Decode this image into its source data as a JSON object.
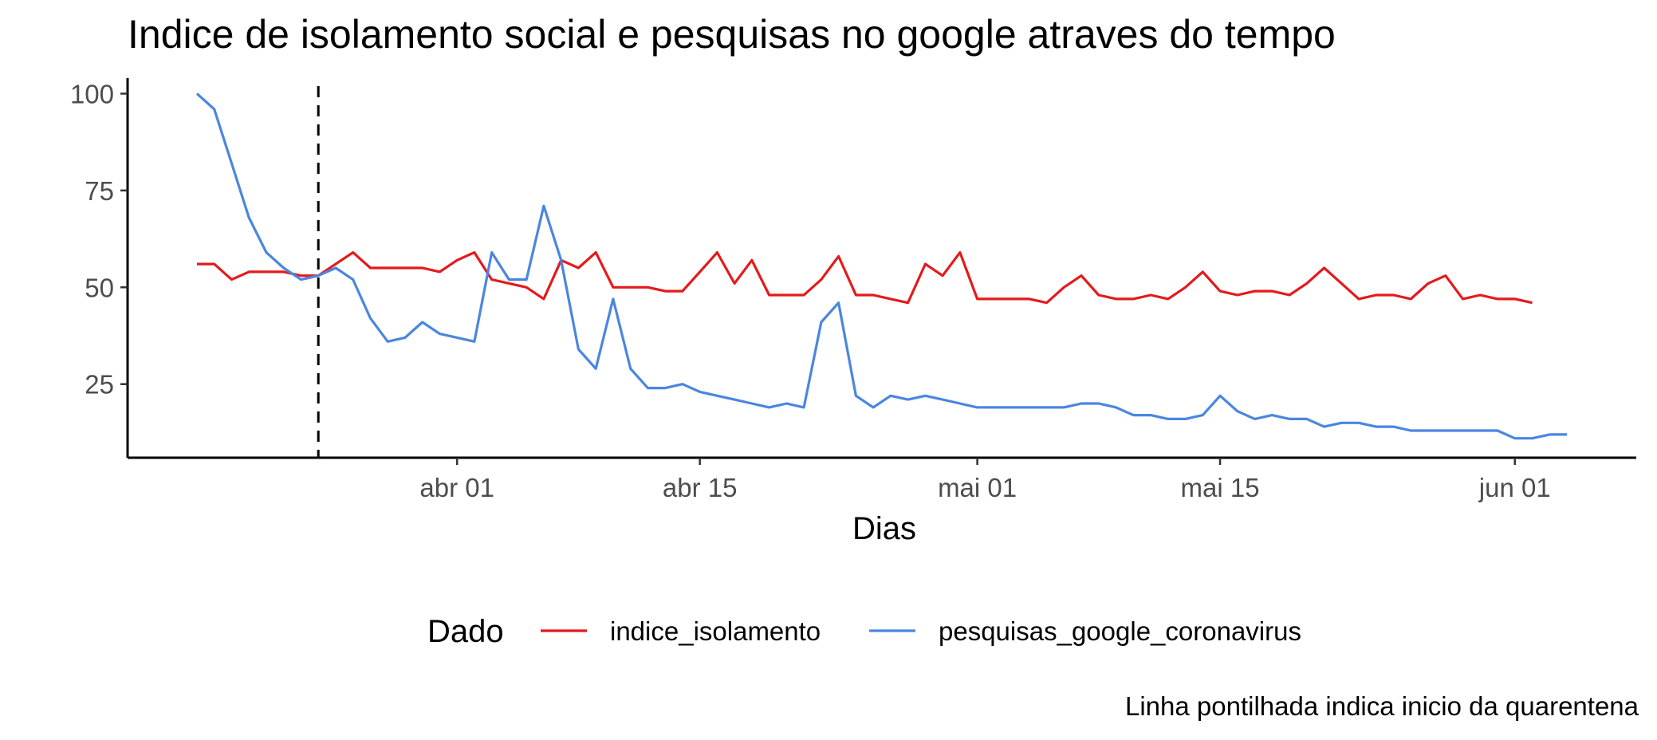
{
  "chart_data": {
    "type": "line",
    "title": "Indice de isolamento social e pesquisas no google atraves do tempo",
    "xlabel": "Dias",
    "ylabel": "",
    "caption": "Linha pontilhada indica inicio da quarentena",
    "legend": {
      "title": "Dado",
      "position": "bottom"
    },
    "grid": false,
    "x_start_date": "2020-03-17",
    "x_ticks": [
      {
        "date": "2020-04-01",
        "label": "abr 01"
      },
      {
        "date": "2020-04-15",
        "label": "abr 15"
      },
      {
        "date": "2020-05-01",
        "label": "mai 01"
      },
      {
        "date": "2020-05-15",
        "label": "mai 15"
      },
      {
        "date": "2020-06-01",
        "label": "jun 01"
      }
    ],
    "y_ticks": [
      25,
      50,
      75,
      100
    ],
    "xlim": [
      "2020-03-13",
      "2020-06-08"
    ],
    "ylim": [
      6,
      104
    ],
    "vline": {
      "date": "2020-03-24",
      "style": "dashed",
      "color": "#000000"
    },
    "series": [
      {
        "name": "indice_isolamento",
        "color": "#e41a1c",
        "values": [
          56,
          56,
          52,
          54,
          54,
          54,
          53,
          53,
          56,
          59,
          55,
          55,
          55,
          55,
          54,
          57,
          59,
          52,
          51,
          50,
          47,
          57,
          55,
          59,
          50,
          50,
          50,
          49,
          49,
          54,
          59,
          51,
          57,
          48,
          48,
          48,
          52,
          58,
          48,
          48,
          47,
          46,
          56,
          53,
          59,
          47,
          47,
          47,
          47,
          46,
          50,
          53,
          48,
          47,
          47,
          48,
          47,
          50,
          54,
          49,
          48,
          49,
          49,
          48,
          51,
          55,
          51,
          47,
          48,
          48,
          47,
          51,
          53,
          47,
          48,
          47,
          47,
          46
        ]
      },
      {
        "name": "pesquisas_google_coronavirus",
        "color": "#4a86e0",
        "values": [
          100,
          96,
          82,
          68,
          59,
          55,
          52,
          53,
          55,
          52,
          42,
          36,
          37,
          41,
          38,
          37,
          36,
          59,
          52,
          52,
          71,
          57,
          34,
          29,
          47,
          29,
          24,
          24,
          25,
          23,
          22,
          21,
          20,
          19,
          20,
          19,
          41,
          46,
          22,
          19,
          22,
          21,
          22,
          21,
          20,
          19,
          19,
          19,
          19,
          19,
          19,
          20,
          20,
          19,
          17,
          17,
          16,
          16,
          17,
          22,
          18,
          16,
          17,
          16,
          16,
          14,
          15,
          15,
          14,
          14,
          13,
          13,
          13,
          13,
          13,
          13,
          11,
          11,
          12,
          12
        ]
      }
    ]
  }
}
